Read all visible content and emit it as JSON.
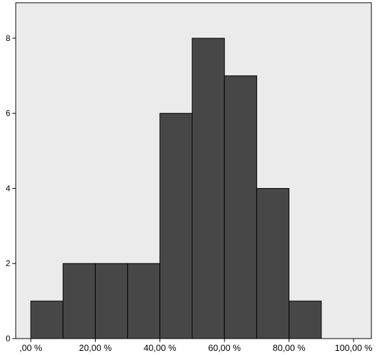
{
  "chart_data": {
    "type": "bar",
    "bin_edges": [
      0,
      10,
      20,
      30,
      40,
      50,
      60,
      70,
      80,
      90
    ],
    "categories": [
      "0-10 %",
      "10-20 %",
      "20-30 %",
      "30-40 %",
      "40-50 %",
      "50-60 %",
      "60-70 %",
      "70-80 %",
      "80-90 %"
    ],
    "values": [
      1,
      2,
      2,
      2,
      6,
      8,
      7,
      4,
      1
    ],
    "x_range": [
      0,
      100
    ],
    "ylim": [
      0,
      8.8
    ],
    "y_ticks": [
      0,
      2,
      4,
      6,
      8
    ],
    "x_ticks": [
      0,
      20,
      40,
      60,
      80,
      100
    ],
    "x_tick_labels": [
      ",00 %",
      "20,00 %",
      "40,00 %",
      "60,00 %",
      "80,00 %",
      "100,00 %"
    ],
    "y_tick_labels": [
      "0",
      "2",
      "4",
      "6",
      "8"
    ],
    "title": "",
    "xlabel": "",
    "ylabel": "",
    "grid": false,
    "colors": {
      "bar": "#474747",
      "bar_edge": "#000000",
      "plot_bg": "#ebebeb",
      "frame": "#000000"
    }
  }
}
